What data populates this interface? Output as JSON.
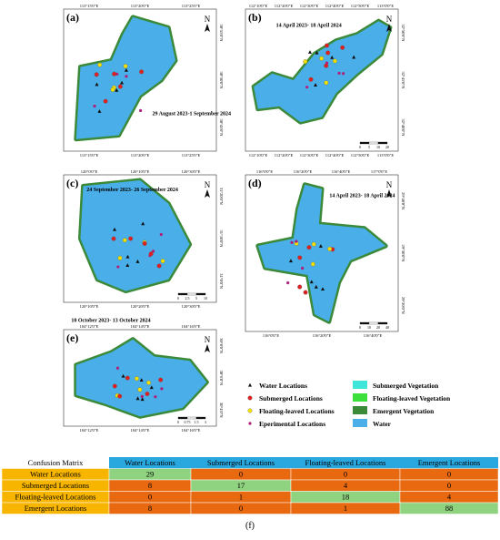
{
  "panels": [
    {
      "label": "(a)",
      "date": "29 August 2023-1 September 2024",
      "north": "N",
      "lon_top": [
        "113°15'0\"E",
        "113°20'0\"E",
        "113°25'0\"E"
      ],
      "lon_bottom": [
        "113°15'0\"E",
        "113°20'0\"E",
        "113°25'0\"E"
      ],
      "lat_right": [
        "30°55'0\"N",
        "30°50'0\"N",
        "30°45'0\"N"
      ],
      "scale": []
    },
    {
      "label": "(b)",
      "date": "14 April 2023- 18 April 2024",
      "north": "N",
      "lon_top": [
        "112°10'0\"E",
        "112°20'0\"E",
        "112°30'0\"E",
        "112°40'0\"E",
        "112°50'0\"E",
        "113°0'0\"E"
      ],
      "lon_bottom": [
        "112°10'0\"E",
        "112°20'0\"E",
        "112°30'0\"E",
        "112°40'0\"E",
        "112°50'0\"E",
        "113°0'0\"E"
      ],
      "lat_right": [
        "32°50'0\"N",
        "32°45'0\"N",
        "32°40'0\"N"
      ],
      "scale": [
        "0",
        "5",
        "10",
        "20"
      ]
    },
    {
      "label": "(c)",
      "date": "24 September 2023- 26 September 2024",
      "north": "N",
      "lon_top": [
        "120°0'0\"E",
        "120°10'0\"E",
        "120°30'0\"E"
      ],
      "lon_bottom": [
        "120°10'0\"E",
        "120°20'0\"E",
        "120°30'0\"E"
      ],
      "lat_right": [
        "31°20'0\"N",
        "31°10'0\"N",
        "31°0'0\"N"
      ],
      "scale": [
        "0",
        "2.5",
        "5",
        "10"
      ]
    },
    {
      "label": "(d)",
      "date": "14 April 2023- 18 April 2024",
      "north": "N",
      "lon_top": [
        "116°0'0\"E",
        "116°20'0\"E",
        "116°40'0\"E",
        "117°0'0\"E"
      ],
      "lon_bottom": [
        "116°0'0\"E",
        "116°20'0\"E",
        "116°40'0\"E"
      ],
      "lat_right": [
        "29°40'0\"N",
        "29°30'0\"N",
        "29°20'0\"N"
      ],
      "scale": [
        "0",
        "10",
        "20",
        "40"
      ]
    },
    {
      "label": "(e)",
      "date": "10 October 2023- 13 October 2024",
      "north": "N",
      "lon_top": [
        "104°12'0\"E",
        "104°14'0\"E",
        "104°16'0\"E"
      ],
      "lon_bottom": [
        "104°12'0\"E",
        "104°14'0\"E",
        "104°16'0\"E"
      ],
      "lat_right": [
        "30°8'0\"N",
        "30°6'0\"N",
        "30°4'0\"N"
      ],
      "scale": [
        "0",
        "0.75",
        "1.5",
        "3"
      ]
    }
  ],
  "legend": {
    "markers": [
      {
        "name": "Water Locations",
        "shape": "triangle",
        "color": "#111111"
      },
      {
        "name": "Submerged Locations",
        "shape": "circle",
        "color": "#e02020"
      },
      {
        "name": "Floating-leaved Locations",
        "shape": "circle",
        "color": "#f2e000"
      },
      {
        "name": "Eperimental Locations",
        "shape": "star",
        "color": "#b0207a"
      }
    ],
    "swatches": [
      {
        "name": "Submerged Vegetation",
        "color": "#3de6d8"
      },
      {
        "name": "Floating-leaved Vegetation",
        "color": "#3ce03c"
      },
      {
        "name": "Emergent Vegetation",
        "color": "#3a8a3a"
      },
      {
        "name": "Water",
        "color": "#4aaee8"
      }
    ]
  },
  "table": {
    "corner": "Confusion Matrix",
    "columns": [
      "Water Locations",
      "Submerged Locations",
      "Floating-leaved Locations",
      "Emergent Locations"
    ],
    "rows": [
      {
        "label": "Water Locations",
        "cells": [
          "29",
          "0",
          "0",
          "0"
        ]
      },
      {
        "label": "Submerged Locations",
        "cells": [
          "8",
          "17",
          "4",
          "0"
        ]
      },
      {
        "label": "Floating-leaved Locations",
        "cells": [
          "0",
          "1",
          "18",
          "4"
        ]
      },
      {
        "label": "Emergent Locations",
        "cells": [
          "8",
          "0",
          "1",
          "88"
        ]
      }
    ]
  },
  "caption": "(f)"
}
